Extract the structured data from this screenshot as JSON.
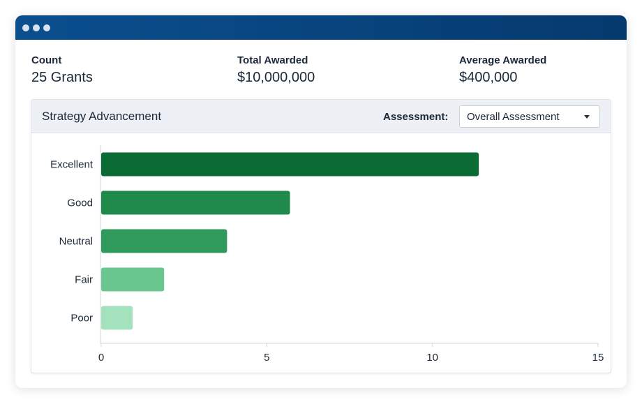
{
  "stats": [
    {
      "label": "Count",
      "value": "25 Grants"
    },
    {
      "label": "Total Awarded",
      "value": "$10,000,000"
    },
    {
      "label": "Average Awarded",
      "value": "$400,000"
    }
  ],
  "panel": {
    "title": "Strategy Advancement",
    "assessment_label": "Assessment:",
    "assessment_selected": "Overall Assessment"
  },
  "colors": {
    "titlebar": "#0b4f8f",
    "bars": [
      "#0a6b35",
      "#1f8a4a",
      "#2f9a5c",
      "#68c68e",
      "#a3e2bc"
    ]
  },
  "chart_data": {
    "type": "bar",
    "orientation": "horizontal",
    "categories": [
      "Excellent",
      "Good",
      "Neutral",
      "Fair",
      "Poor"
    ],
    "values": [
      11.4,
      5.7,
      3.8,
      1.9,
      0.95
    ],
    "xlim": [
      0,
      15
    ],
    "xticks": [
      0,
      5,
      10,
      15
    ],
    "grid": false,
    "title": "",
    "xlabel": "",
    "ylabel": ""
  }
}
